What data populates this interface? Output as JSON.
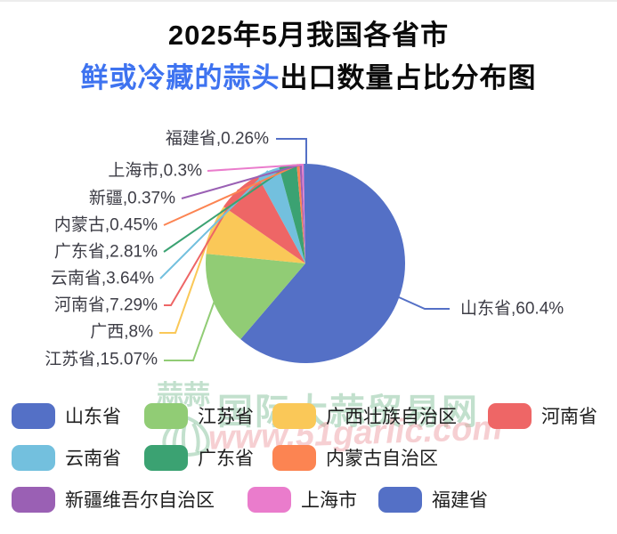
{
  "title": {
    "line1": "2025年5月我国各省市",
    "line2_highlight": "鲜或冷藏的蒜头",
    "line2_rest": "出口数量占比分布图",
    "highlight_color": "#3E73F0"
  },
  "watermark": {
    "site_name": "国际大蒜贸易网",
    "url": "www.51garlic.com"
  },
  "chart_data": {
    "type": "pie",
    "title": "2025年5月我国各省市鲜或冷藏的蒜头出口数量占比分布图",
    "value_unit": "%",
    "legend_position": "bottom",
    "series": [
      {
        "name": "山东省",
        "legend_label": "山东省",
        "value": 60.4,
        "label_text": "山东省,60.4%",
        "color": "#5470C6"
      },
      {
        "name": "江苏省",
        "legend_label": "江苏省",
        "value": 15.07,
        "label_text": "江苏省,15.07%",
        "color": "#91CC75"
      },
      {
        "name": "广西",
        "legend_label": "广西壮族自治区",
        "value": 8,
        "label_text": "广西,8%",
        "color": "#FAC858"
      },
      {
        "name": "河南省",
        "legend_label": "河南省",
        "value": 7.29,
        "label_text": "河南省,7.29%",
        "color": "#EE6666"
      },
      {
        "name": "云南省",
        "legend_label": "云南省",
        "value": 3.64,
        "label_text": "云南省,3.64%",
        "color": "#73C0DE"
      },
      {
        "name": "广东省",
        "legend_label": "广东省",
        "value": 2.81,
        "label_text": "广东省,2.81%",
        "color": "#3BA272"
      },
      {
        "name": "内蒙古",
        "legend_label": "内蒙古自治区",
        "value": 0.45,
        "label_text": "内蒙古,0.45%",
        "color": "#FC8452"
      },
      {
        "name": "新疆",
        "legend_label": "新疆维吾尔自治区",
        "value": 0.37,
        "label_text": "新疆,0.37%",
        "color": "#9A60B4"
      },
      {
        "name": "上海市",
        "legend_label": "上海市",
        "value": 0.3,
        "label_text": "上海市,0.3%",
        "color": "#EA7CCC"
      },
      {
        "name": "福建省",
        "legend_label": "福建省",
        "value": 0.26,
        "label_text": "福建省,0.26%",
        "color": "#5470C6"
      }
    ]
  }
}
